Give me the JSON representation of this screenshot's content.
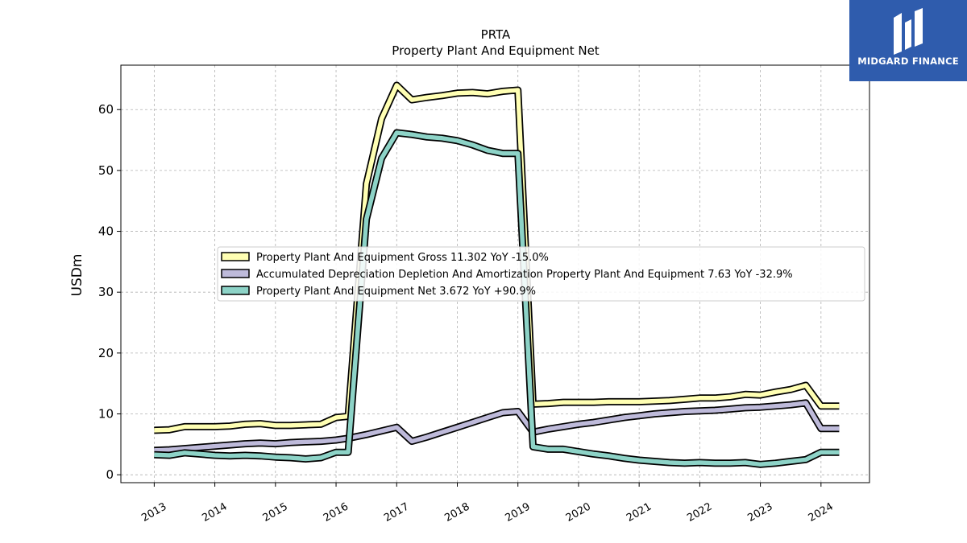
{
  "chart_data": {
    "type": "line",
    "title": "PRTA",
    "subtitle": "Property Plant And Equipment Net",
    "ylabel": "USDm",
    "xlabel": "",
    "ylim": [
      -1.3,
      67.3
    ],
    "yticks": [
      0,
      10,
      20,
      30,
      40,
      50,
      60
    ],
    "xlim": [
      2012.45,
      2024.8
    ],
    "xticks": [
      2013,
      2014,
      2015,
      2016,
      2017,
      2018,
      2019,
      2020,
      2021,
      2022,
      2023,
      2024
    ],
    "grid": true,
    "legend_position": "center",
    "x": [
      2013.0,
      2013.25,
      2013.5,
      2013.75,
      2014.0,
      2014.25,
      2014.5,
      2014.75,
      2015.0,
      2015.25,
      2015.5,
      2015.75,
      2016.0,
      2016.2,
      2016.5,
      2016.75,
      2017.0,
      2017.25,
      2017.5,
      2017.75,
      2018.0,
      2018.25,
      2018.5,
      2018.75,
      2019.0,
      2019.25,
      2019.5,
      2019.75,
      2020.0,
      2020.25,
      2020.5,
      2020.75,
      2021.0,
      2021.25,
      2021.5,
      2021.75,
      2022.0,
      2022.25,
      2022.5,
      2022.75,
      2023.0,
      2023.25,
      2023.5,
      2023.75,
      2024.0,
      2024.3
    ],
    "series": [
      {
        "name": "Property Plant And Equipment Gross",
        "legend": "Property Plant And Equipment Gross  11.302 YoY -15.0%",
        "color": "#ffffb3",
        "values": [
          7.3,
          7.4,
          7.9,
          7.9,
          7.9,
          8.0,
          8.3,
          8.4,
          8.1,
          8.1,
          8.2,
          8.3,
          9.4,
          9.6,
          47.8,
          58.5,
          64.0,
          61.6,
          62.0,
          62.3,
          62.7,
          62.8,
          62.6,
          63.0,
          63.2,
          11.6,
          11.7,
          11.9,
          11.9,
          11.9,
          12.0,
          12.0,
          12.0,
          12.1,
          12.2,
          12.4,
          12.6,
          12.6,
          12.8,
          13.2,
          13.1,
          13.6,
          14.0,
          14.7,
          11.3,
          11.3
        ]
      },
      {
        "name": "Accumulated Depreciation Depletion And Amortization Property Plant And Equipment",
        "legend": "Accumulated Depreciation Depletion And Amortization Property Plant And Equipment  7.63 YoY -32.9%",
        "color": "#bebada",
        "values": [
          4.0,
          4.1,
          4.3,
          4.5,
          4.7,
          4.9,
          5.1,
          5.2,
          5.1,
          5.3,
          5.4,
          5.5,
          5.7,
          6.0,
          6.6,
          7.2,
          7.8,
          5.5,
          6.2,
          7.0,
          7.8,
          8.6,
          9.4,
          10.2,
          10.4,
          7.0,
          7.5,
          7.9,
          8.3,
          8.6,
          9.0,
          9.4,
          9.7,
          10.0,
          10.2,
          10.4,
          10.5,
          10.6,
          10.8,
          11.0,
          11.1,
          11.3,
          11.5,
          11.8,
          7.6,
          7.6
        ]
      },
      {
        "name": "Property Plant And Equipment Net",
        "legend": "Property Plant And Equipment Net  3.672 YoY +90.9%",
        "color": "#8dd3c7",
        "values": [
          3.3,
          3.2,
          3.6,
          3.4,
          3.2,
          3.1,
          3.2,
          3.1,
          2.9,
          2.8,
          2.6,
          2.8,
          3.7,
          3.7,
          42.0,
          52.0,
          56.2,
          55.9,
          55.5,
          55.3,
          54.9,
          54.2,
          53.3,
          52.8,
          52.8,
          4.6,
          4.2,
          4.2,
          3.8,
          3.4,
          3.1,
          2.7,
          2.4,
          2.2,
          2.0,
          1.9,
          2.0,
          1.9,
          1.9,
          2.0,
          1.7,
          1.9,
          2.2,
          2.5,
          3.7,
          3.7
        ]
      }
    ]
  },
  "logo": {
    "text": "MIDGARD FINANCE",
    "icon": "midgard-finance-logo-icon",
    "bg_color": "#2f5cad"
  }
}
